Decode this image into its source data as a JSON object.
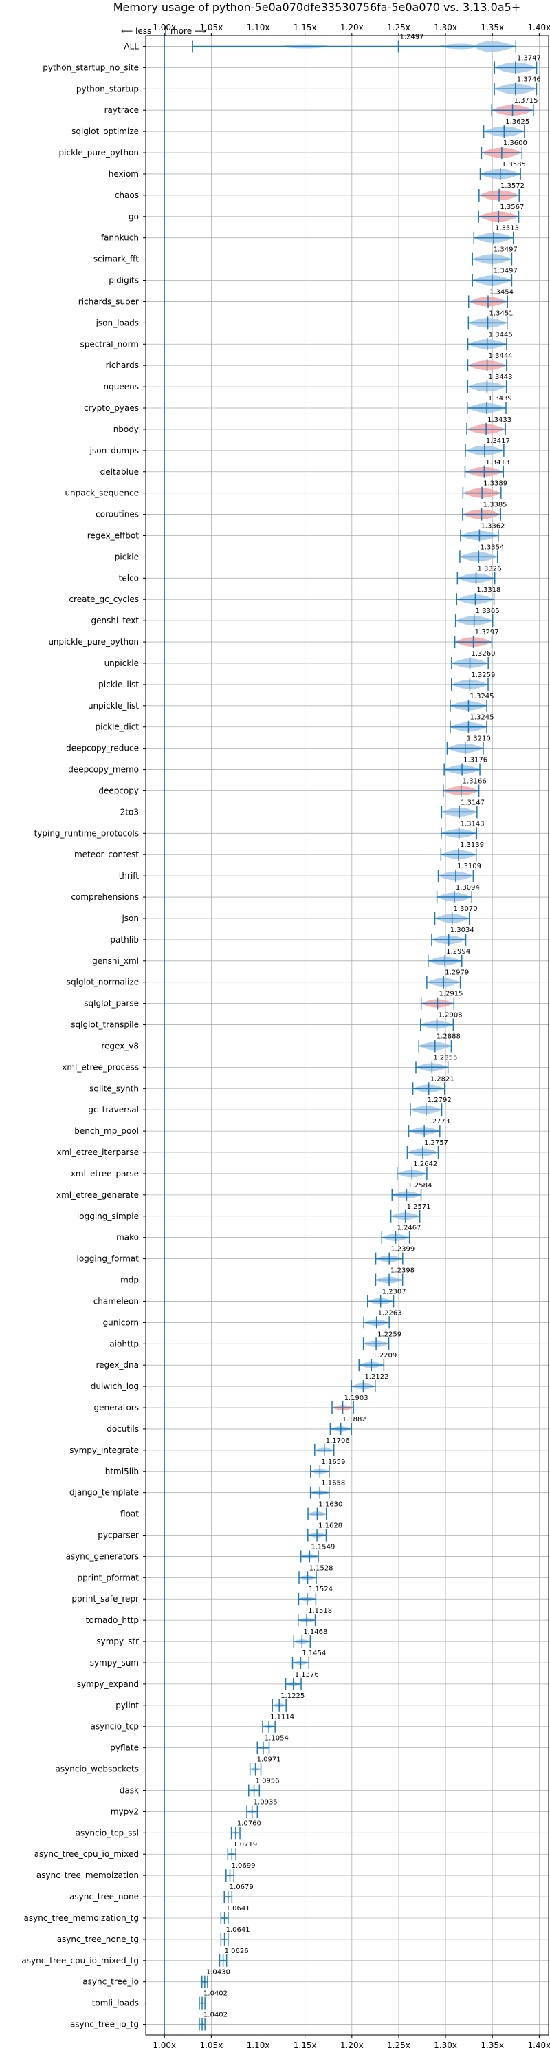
{
  "chart_data": {
    "type": "violin",
    "title": "Memory usage of python-5e0a070dfe33530756fa-5e0a070 vs. 3.13.0a5+",
    "x_annotation": {
      "left": "⟵ less",
      "right": "more ⟶"
    },
    "xlim": [
      0.98,
      1.41
    ],
    "xticks": [
      "1.00x",
      "1.05x",
      "1.10x",
      "1.15x",
      "1.20x",
      "1.25x",
      "1.30x",
      "1.35x",
      "1.40x"
    ],
    "xtick_values": [
      1.0,
      1.05,
      1.1,
      1.15,
      1.2,
      1.25,
      1.3,
      1.35,
      1.4
    ],
    "grid": true,
    "colors": {
      "default": "#a6c8e8",
      "highlight": "#f4a3a6",
      "line": "#1f77b4"
    },
    "series": [
      {
        "name": "ALL",
        "value": 1.2497,
        "highlight": false
      },
      {
        "name": "python_startup_no_site",
        "value": 1.3747,
        "highlight": false
      },
      {
        "name": "python_startup",
        "value": 1.3746,
        "highlight": false
      },
      {
        "name": "raytrace",
        "value": 1.3715,
        "highlight": true
      },
      {
        "name": "sqlglot_optimize",
        "value": 1.3625,
        "highlight": false
      },
      {
        "name": "pickle_pure_python",
        "value": 1.36,
        "highlight": true
      },
      {
        "name": "hexiom",
        "value": 1.3585,
        "highlight": false
      },
      {
        "name": "chaos",
        "value": 1.3572,
        "highlight": true
      },
      {
        "name": "go",
        "value": 1.3567,
        "highlight": true
      },
      {
        "name": "fannkuch",
        "value": 1.3513,
        "highlight": false
      },
      {
        "name": "scimark_fft",
        "value": 1.3497,
        "highlight": false
      },
      {
        "name": "pidigits",
        "value": 1.3497,
        "highlight": false
      },
      {
        "name": "richards_super",
        "value": 1.3454,
        "highlight": true
      },
      {
        "name": "json_loads",
        "value": 1.3451,
        "highlight": false
      },
      {
        "name": "spectral_norm",
        "value": 1.3445,
        "highlight": false
      },
      {
        "name": "richards",
        "value": 1.3444,
        "highlight": true
      },
      {
        "name": "nqueens",
        "value": 1.3443,
        "highlight": false
      },
      {
        "name": "crypto_pyaes",
        "value": 1.3439,
        "highlight": false
      },
      {
        "name": "nbody",
        "value": 1.3433,
        "highlight": true
      },
      {
        "name": "json_dumps",
        "value": 1.3417,
        "highlight": false
      },
      {
        "name": "deltablue",
        "value": 1.3413,
        "highlight": true
      },
      {
        "name": "unpack_sequence",
        "value": 1.3389,
        "highlight": true
      },
      {
        "name": "coroutines",
        "value": 1.3385,
        "highlight": true
      },
      {
        "name": "regex_effbot",
        "value": 1.3362,
        "highlight": false
      },
      {
        "name": "pickle",
        "value": 1.3354,
        "highlight": false
      },
      {
        "name": "telco",
        "value": 1.3326,
        "highlight": false
      },
      {
        "name": "create_gc_cycles",
        "value": 1.3318,
        "highlight": false
      },
      {
        "name": "genshi_text",
        "value": 1.3305,
        "highlight": false
      },
      {
        "name": "unpickle_pure_python",
        "value": 1.3297,
        "highlight": true
      },
      {
        "name": "unpickle",
        "value": 1.326,
        "highlight": false
      },
      {
        "name": "pickle_list",
        "value": 1.3259,
        "highlight": false
      },
      {
        "name": "unpickle_list",
        "value": 1.3245,
        "highlight": false
      },
      {
        "name": "pickle_dict",
        "value": 1.3245,
        "highlight": false
      },
      {
        "name": "deepcopy_reduce",
        "value": 1.321,
        "highlight": false
      },
      {
        "name": "deepcopy_memo",
        "value": 1.3176,
        "highlight": false
      },
      {
        "name": "deepcopy",
        "value": 1.3166,
        "highlight": true
      },
      {
        "name": "2to3",
        "value": 1.3147,
        "highlight": false
      },
      {
        "name": "typing_runtime_protocols",
        "value": 1.3143,
        "highlight": false
      },
      {
        "name": "meteor_contest",
        "value": 1.3139,
        "highlight": false
      },
      {
        "name": "thrift",
        "value": 1.3109,
        "highlight": false
      },
      {
        "name": "comprehensions",
        "value": 1.3094,
        "highlight": false
      },
      {
        "name": "json",
        "value": 1.307,
        "highlight": false
      },
      {
        "name": "pathlib",
        "value": 1.3034,
        "highlight": false
      },
      {
        "name": "genshi_xml",
        "value": 1.2994,
        "highlight": false
      },
      {
        "name": "sqlglot_normalize",
        "value": 1.2979,
        "highlight": false
      },
      {
        "name": "sqlglot_parse",
        "value": 1.2915,
        "highlight": true
      },
      {
        "name": "sqlglot_transpile",
        "value": 1.2908,
        "highlight": false
      },
      {
        "name": "regex_v8",
        "value": 1.2888,
        "highlight": false
      },
      {
        "name": "xml_etree_process",
        "value": 1.2855,
        "highlight": false
      },
      {
        "name": "sqlite_synth",
        "value": 1.2821,
        "highlight": false
      },
      {
        "name": "gc_traversal",
        "value": 1.2792,
        "highlight": false
      },
      {
        "name": "bench_mp_pool",
        "value": 1.2773,
        "highlight": false
      },
      {
        "name": "xml_etree_iterparse",
        "value": 1.2757,
        "highlight": false
      },
      {
        "name": "xml_etree_parse",
        "value": 1.2642,
        "highlight": false
      },
      {
        "name": "xml_etree_generate",
        "value": 1.2584,
        "highlight": false
      },
      {
        "name": "logging_simple",
        "value": 1.2571,
        "highlight": false
      },
      {
        "name": "mako",
        "value": 1.2467,
        "highlight": false
      },
      {
        "name": "logging_format",
        "value": 1.2399,
        "highlight": false
      },
      {
        "name": "mdp",
        "value": 1.2398,
        "highlight": false
      },
      {
        "name": "chameleon",
        "value": 1.2307,
        "highlight": false
      },
      {
        "name": "gunicorn",
        "value": 1.2263,
        "highlight": false
      },
      {
        "name": "aiohttp",
        "value": 1.2259,
        "highlight": false
      },
      {
        "name": "regex_dna",
        "value": 1.2209,
        "highlight": false
      },
      {
        "name": "dulwich_log",
        "value": 1.2122,
        "highlight": false
      },
      {
        "name": "generators",
        "value": 1.1903,
        "highlight": true
      },
      {
        "name": "docutils",
        "value": 1.1882,
        "highlight": false
      },
      {
        "name": "sympy_integrate",
        "value": 1.1706,
        "highlight": false
      },
      {
        "name": "html5lib",
        "value": 1.1659,
        "highlight": false
      },
      {
        "name": "django_template",
        "value": 1.1658,
        "highlight": false
      },
      {
        "name": "float",
        "value": 1.163,
        "highlight": false
      },
      {
        "name": "pycparser",
        "value": 1.1628,
        "highlight": false
      },
      {
        "name": "async_generators",
        "value": 1.1549,
        "highlight": false
      },
      {
        "name": "pprint_pformat",
        "value": 1.1528,
        "highlight": false
      },
      {
        "name": "pprint_safe_repr",
        "value": 1.1524,
        "highlight": false
      },
      {
        "name": "tornado_http",
        "value": 1.1518,
        "highlight": false
      },
      {
        "name": "sympy_str",
        "value": 1.1468,
        "highlight": false
      },
      {
        "name": "sympy_sum",
        "value": 1.1454,
        "highlight": false
      },
      {
        "name": "sympy_expand",
        "value": 1.1376,
        "highlight": false
      },
      {
        "name": "pylint",
        "value": 1.1225,
        "highlight": false
      },
      {
        "name": "asyncio_tcp",
        "value": 1.1114,
        "highlight": false
      },
      {
        "name": "pyflate",
        "value": 1.1054,
        "highlight": false
      },
      {
        "name": "asyncio_websockets",
        "value": 1.0971,
        "highlight": false
      },
      {
        "name": "dask",
        "value": 1.0956,
        "highlight": false
      },
      {
        "name": "mypy2",
        "value": 1.0935,
        "highlight": false
      },
      {
        "name": "asyncio_tcp_ssl",
        "value": 1.076,
        "highlight": false
      },
      {
        "name": "async_tree_cpu_io_mixed",
        "value": 1.0719,
        "highlight": false
      },
      {
        "name": "async_tree_memoization",
        "value": 1.0699,
        "highlight": false
      },
      {
        "name": "async_tree_none",
        "value": 1.0679,
        "highlight": false
      },
      {
        "name": "async_tree_memoization_tg",
        "value": 1.0641,
        "highlight": false
      },
      {
        "name": "async_tree_none_tg",
        "value": 1.0641,
        "highlight": false
      },
      {
        "name": "async_tree_cpu_io_mixed_tg",
        "value": 1.0626,
        "highlight": false
      },
      {
        "name": "async_tree_io",
        "value": 1.043,
        "highlight": false
      },
      {
        "name": "tomli_loads",
        "value": 1.0402,
        "highlight": true
      },
      {
        "name": "async_tree_io_tg",
        "value": 1.0402,
        "highlight": false
      }
    ]
  }
}
